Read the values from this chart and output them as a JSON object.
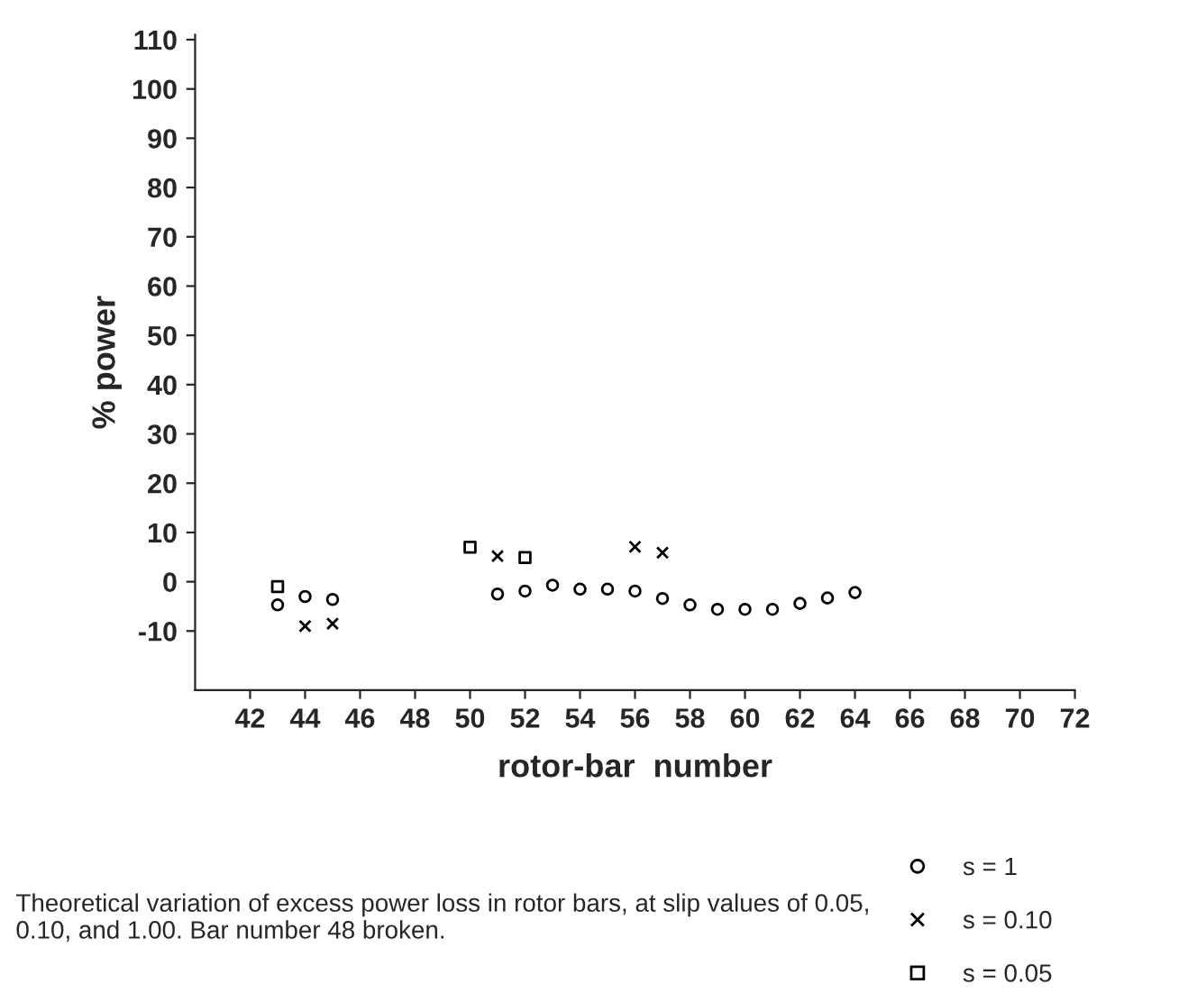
{
  "chart_data": {
    "type": "scatter",
    "xlabel": "rotor-bar  number",
    "ylabel": "% power",
    "x": [
      43,
      44,
      45,
      51,
      52,
      53,
      54,
      55,
      56,
      57,
      58,
      59,
      60,
      61,
      62,
      63,
      64
    ],
    "series": [
      {
        "name": "s = 1",
        "color": "#000000",
        "marker": "circle",
        "values": [
          -4.7,
          -3,
          -3.6,
          -2.5,
          -1.9,
          -0.7,
          -1.5,
          -1.5,
          -1.9,
          -3.4,
          -4.7,
          -5.6,
          -5.6,
          -5.6,
          -4.4,
          -3.3,
          -2.2
        ]
      },
      {
        "name": "s = 0.10",
        "color": "#000000",
        "marker": "cross",
        "x": [
          44,
          45,
          51,
          56,
          57
        ],
        "values": [
          -9,
          -8.5,
          5.2,
          7.1,
          5.9
        ]
      },
      {
        "name": "s = 0.05",
        "color": "#000000",
        "marker": "square",
        "x": [
          43,
          50,
          52
        ],
        "values": [
          -1,
          7.0,
          4.9
        ]
      }
    ],
    "xlim": [
      40,
      72
    ],
    "xticks": [
      42,
      44,
      46,
      48,
      50,
      52,
      54,
      56,
      58,
      60,
      62,
      64,
      66,
      68,
      70,
      72
    ],
    "ylim": [
      -22,
      111
    ],
    "yticks": [
      -10,
      0,
      10,
      20,
      30,
      40,
      50,
      60,
      70,
      80,
      90,
      100,
      110
    ],
    "grid": false,
    "legend": "bottom right",
    "annotations": [
      "Theoretical variation of excess power loss in rotor bars, at slip values of 0.05, 0.10, and 1.00. Bar number 48 broken."
    ]
  }
}
